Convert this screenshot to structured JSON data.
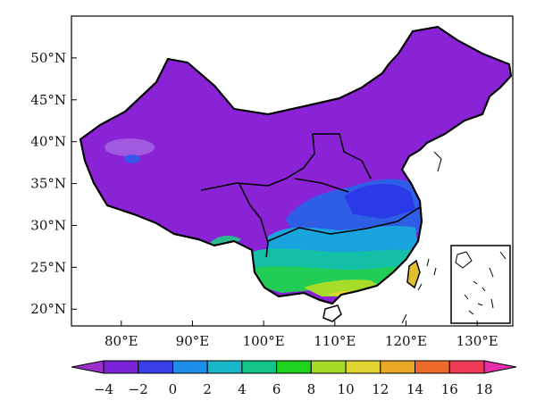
{
  "map": {
    "type": "filled-contour-map",
    "region": "China",
    "lon_range": [
      73,
      135
    ],
    "lat_range": [
      18,
      55
    ],
    "lat_labels": [
      "50°N",
      "45°N",
      "40°N",
      "35°N",
      "30°N",
      "25°N",
      "20°N"
    ],
    "lat_values": [
      50,
      45,
      40,
      35,
      30,
      25,
      20
    ],
    "lon_labels": [
      "80°E",
      "90°E",
      "100°E",
      "110°E",
      "120°E",
      "130°E"
    ],
    "lon_values": [
      80,
      90,
      100,
      110,
      120,
      130
    ],
    "inset": "South China Sea islands"
  },
  "colorbar": {
    "labels": [
      "−4",
      "−2",
      "0",
      "2",
      "4",
      "6",
      "8",
      "10",
      "12",
      "14",
      "16",
      "18"
    ],
    "levels": [
      -4,
      -2,
      0,
      2,
      4,
      6,
      8,
      10,
      12,
      14,
      16,
      18
    ],
    "colors": [
      "#9b2fc9",
      "#7a22d6",
      "#3a3ee8",
      "#1e8fe8",
      "#19b8c9",
      "#12c48a",
      "#1ed21e",
      "#a5dc2a",
      "#e0d530",
      "#e8a826",
      "#ee6a2a",
      "#ee3a55",
      "#e82ea8"
    ]
  }
}
